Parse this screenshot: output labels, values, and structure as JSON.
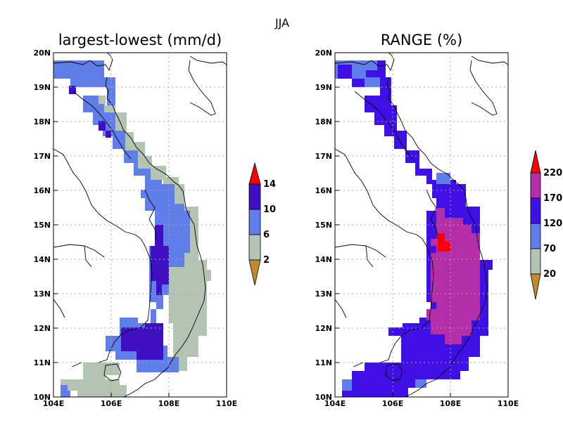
{
  "suptitle": "JJA",
  "panels": [
    {
      "title": "largest-lowest (mm/d)",
      "lon_labels": [
        "104E",
        "106E",
        "108E",
        "110E"
      ],
      "lat_labels": [
        "10N",
        "11N",
        "12N",
        "13N",
        "14N",
        "15N",
        "16N",
        "17N",
        "18N",
        "19N",
        "20N"
      ],
      "colorbar": {
        "labels": [
          "2",
          "6",
          "10",
          "14"
        ],
        "colors": {
          "below": "#c18a2a",
          "c1": "#b3c4b3",
          "c2": "#5f7eea",
          "c3": "#3f10c3",
          "above": "#ff0000"
        }
      }
    },
    {
      "title": "RANGE (%)",
      "lon_labels": [
        "104E",
        "106E",
        "108E",
        "110E"
      ],
      "lat_labels": [
        "10N",
        "11N",
        "12N",
        "13N",
        "14N",
        "15N",
        "16N",
        "17N",
        "18N",
        "19N",
        "20N"
      ],
      "colorbar": {
        "labels": [
          "20",
          "70",
          "120",
          "170",
          "220"
        ],
        "colors": {
          "below": "#c18a2a",
          "c1": "#b3c4b3",
          "c2": "#5f7eea",
          "c3": "#3f10e6",
          "c4": "#b32ea8",
          "above": "#ff0000"
        }
      }
    }
  ]
}
